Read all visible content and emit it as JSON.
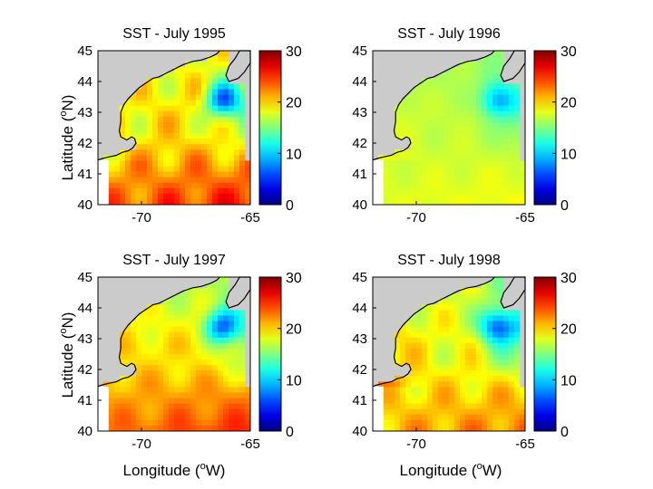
{
  "figure": {
    "ylabel_text": "Latitude (",
    "ylabel_sup": "o",
    "ylabel_end": "N)",
    "xlabel_text": "Longitude (",
    "xlabel_sup": "o",
    "xlabel_end": "W)"
  },
  "chart_data": [
    {
      "type": "heatmap",
      "title": "SST - July 1995",
      "xlabel": "",
      "ylabel": "Latitude (oN)",
      "xticks": [
        "-70",
        "-65"
      ],
      "yticks": [
        "40",
        "41",
        "42",
        "43",
        "44",
        "45"
      ],
      "xlim": [
        -72,
        -65
      ],
      "ylim": [
        40,
        45
      ],
      "colorbar": {
        "ticks": [
          "0",
          "10",
          "20",
          "30"
        ],
        "range": [
          0,
          30
        ],
        "colormap": "jet"
      },
      "field": {
        "base": 19.5,
        "north": 18.5,
        "east": 14,
        "south": 25.5,
        "west": 18.5,
        "cold_spot": 10,
        "bump": 2.5
      }
    },
    {
      "type": "heatmap",
      "title": "SST - July 1996",
      "xlabel": "",
      "ylabel": "",
      "xticks": [
        "-70",
        "-65"
      ],
      "yticks": [
        "40",
        "41",
        "42",
        "43",
        "44",
        "45"
      ],
      "xlim": [
        -72,
        -65
      ],
      "ylim": [
        40,
        45
      ],
      "colorbar": {
        "ticks": [
          "0",
          "10",
          "20",
          "30"
        ],
        "range": [
          0,
          30
        ],
        "colormap": "jet"
      },
      "field": {
        "base": 17,
        "north": 16,
        "east": 13,
        "south": 18.5,
        "west": 18,
        "cold_spot": 11,
        "bump": 0.5
      }
    },
    {
      "type": "heatmap",
      "title": "SST - July 1997",
      "xlabel": "",
      "ylabel": "Latitude (oN)",
      "xticks": [
        "-70",
        "-65"
      ],
      "yticks": [
        "40",
        "41",
        "42",
        "43",
        "44",
        "45"
      ],
      "xlim": [
        -72,
        -65
      ],
      "ylim": [
        40,
        45
      ],
      "colorbar": {
        "ticks": [
          "0",
          "10",
          "20",
          "30"
        ],
        "range": [
          0,
          30
        ],
        "colormap": "jet"
      },
      "field": {
        "base": 19.5,
        "north": 16.5,
        "east": 14,
        "south": 25,
        "west": 20,
        "cold_spot": 10,
        "bump": 1.5
      }
    },
    {
      "type": "heatmap",
      "title": "SST - July 1998",
      "xlabel": "",
      "ylabel": "",
      "xticks": [
        "-70",
        "-65"
      ],
      "yticks": [
        "40",
        "41",
        "42",
        "43",
        "44",
        "45"
      ],
      "xlim": [
        -72,
        -65
      ],
      "ylim": [
        40,
        45
      ],
      "colorbar": {
        "ticks": [
          "0",
          "10",
          "20",
          "30"
        ],
        "range": [
          0,
          30
        ],
        "colormap": "jet"
      },
      "field": {
        "base": 18.5,
        "north": 17,
        "east": 12,
        "south": 22.5,
        "west": 21,
        "cold_spot": 9,
        "bump": 2
      }
    }
  ],
  "colors": {
    "land": "#cbcbcb",
    "coast": "#000000",
    "ocean_missing": "#ffffff"
  }
}
